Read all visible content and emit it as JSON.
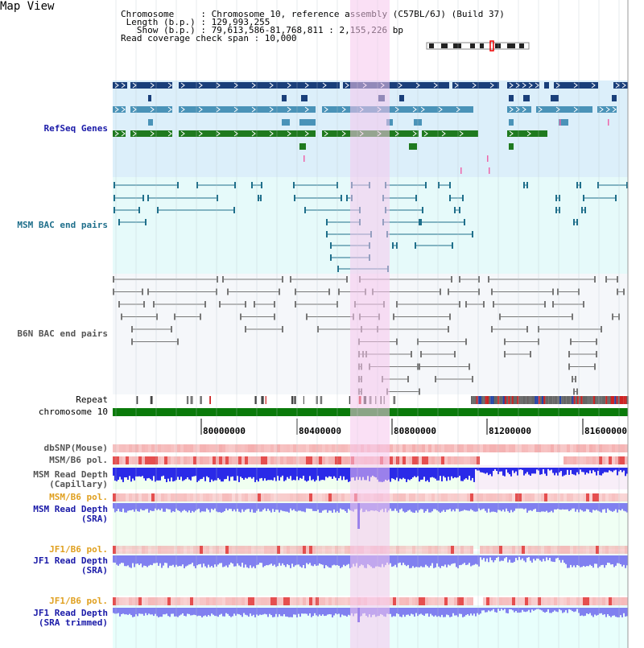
{
  "header": {
    "title": "Map View",
    "info_lines": [
      "Chromosome     : Chromosome 10, reference assembly (C57BL/6J) (Build 37)",
      " Length (b.p.) : 129,993,255",
      "   Show (b.p.) : 79,613,586-81,768,811 : 2,155,226 bp",
      "Read coverage check span : 10,000"
    ]
  },
  "tracks": {
    "refseq": "RefSeq Genes",
    "msm_bac": "MSM BAC end pairs",
    "b6n_bac": "B6N BAC end pairs",
    "repeat": "Repeat",
    "chromosome": "chromosome 10",
    "dbsnp": "dbSNP(Mouse)",
    "msm_b6_pol_1": "MSM/B6 pol.",
    "msm_depth_cap_1": "MSM Read Depth",
    "msm_depth_cap_2": "(Capillary)",
    "msm_b6_pol_2": "MSM/B6 pol.",
    "msm_depth_sra_1": "MSM Read Depth",
    "msm_depth_sra_2": "(SRA)",
    "jf1_b6_pol_1": "JF1/B6 pol.",
    "jf1_depth_sra_1": "JF1 Read Depth",
    "jf1_depth_sra_2": "(SRA)",
    "jf1_b6_pol_2": "JF1/B6 pol.",
    "jf1_depth_trim_1": "JF1 Read Depth",
    "jf1_depth_trim_2": "(SRA trimmed)"
  },
  "axis": {
    "ticks": [
      "80000000",
      "80400000",
      "80800000",
      "81200000",
      "81600000"
    ]
  },
  "colors": {
    "refseq_dark": "#1a3f7a",
    "refseq_mid": "#4a93b8",
    "refseq_green": "#1f7a1f",
    "refseq_bg": "#dceffa",
    "bac_bg": "#e6fafa",
    "bac_line": "#1f6f8b",
    "b6n_line": "#777777",
    "highlight": "#f5c6ec",
    "chromosome_bar": "#0a7a0a",
    "depth_blue": "#2a2ae8",
    "depth_light": "#8080f0",
    "label_blue": "#1a1aa8",
    "label_teal": "#1f6f8b",
    "label_orange": "#e0a020",
    "label_gray": "#555555"
  }
}
